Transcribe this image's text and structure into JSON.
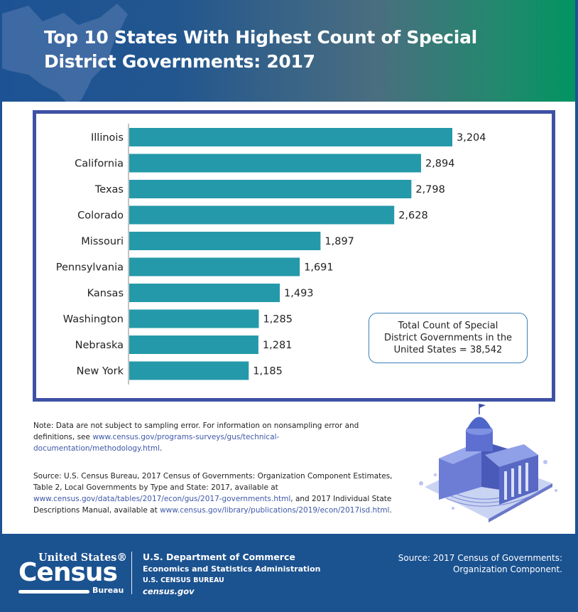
{
  "header": {
    "title": "Top 10 States With Highest Count of Special District Governments: 2017"
  },
  "chart_data": {
    "type": "bar",
    "orientation": "horizontal",
    "title": "Top 10 States With Highest Count of Special District Governments: 2017",
    "xlabel": "",
    "ylabel": "",
    "categories": [
      "Illinois",
      "California",
      "Texas",
      "Colorado",
      "Missouri",
      "Pennsylvania",
      "Kansas",
      "Washington",
      "Nebraska",
      "New York"
    ],
    "values": [
      3204,
      2894,
      2798,
      2628,
      1897,
      1691,
      1493,
      1285,
      1281,
      1185
    ],
    "value_labels": [
      "3,204",
      "2,894",
      "2,798",
      "2,628",
      "1,897",
      "1,691",
      "1,493",
      "1,285",
      "1,281",
      "1,185"
    ],
    "xlim": [
      0,
      3204
    ],
    "grid": false,
    "bar_color": "#2499a9",
    "annotation": "Total Count of Special District Governments in the United States = 38,542"
  },
  "total_box": {
    "line1": "Total Count of Special",
    "line2": "District Governments in the",
    "line3": "United States = 38,542"
  },
  "note": {
    "text": "Note: Data are not subject to sampling error. For information on nonsampling error and definitions, see ",
    "link": "www.census.gov/programs-surveys/gus/technical-documentation/methodology.html",
    "end": "."
  },
  "source": {
    "text1": "Source: U.S. Census Bureau, 2017 Census of Governments: Organization Component Estimates, Table 2, Local Governments by Type and State: 2017, available at ",
    "link1": "www.census.gov/data/tables/2017/econ/gus/2017-governments.html",
    "text2": ", and 2017 Individual State Descriptions Manual, available at ",
    "link2": "www.census.gov/library/publications/2019/econ/2017isd.html",
    "end": "."
  },
  "footer": {
    "logo_top": "United States®",
    "logo_main": "Census",
    "logo_sub": "Bureau",
    "dept_line1": "U.S. Department of Commerce",
    "dept_line2": "Economics and Statistics Administration",
    "dept_line3": "U.S. CENSUS BUREAU",
    "dept_line4": "census.gov",
    "source_line1": "Source: 2017 Census of Governments:",
    "source_line2": "Organization Component."
  },
  "colors": {
    "header_start": "#1d5394",
    "header_end": "#009560",
    "chart_border": "#3f51a5",
    "bar": "#2499a9",
    "link": "#3e58a8",
    "footer": "#1b5290"
  }
}
